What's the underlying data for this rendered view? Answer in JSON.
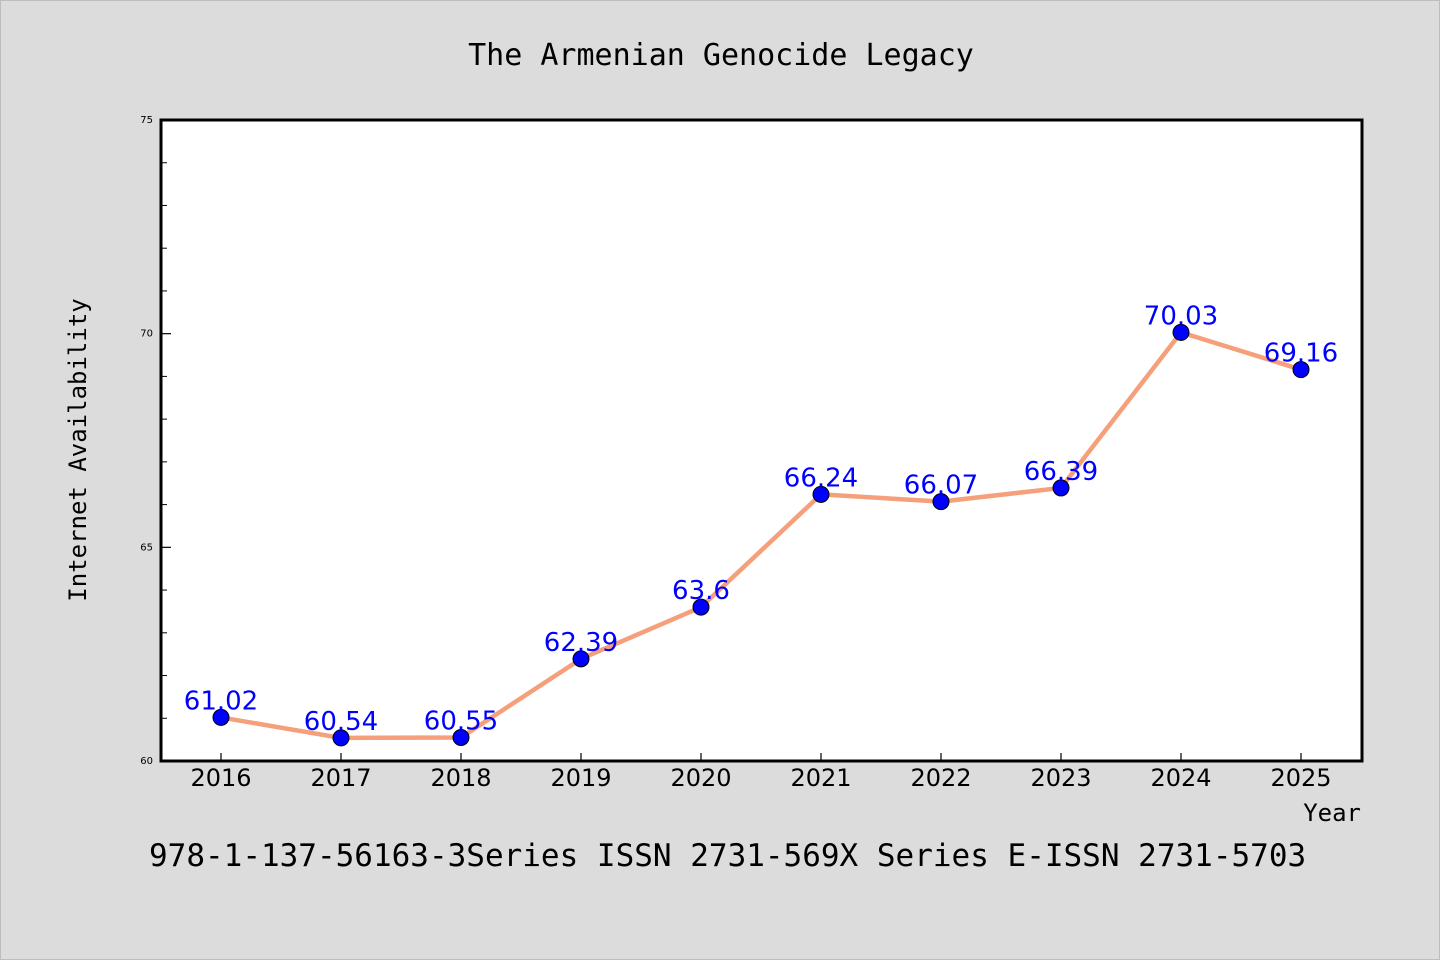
{
  "chart_data": {
    "type": "line",
    "title": "The Armenian Genocide Legacy",
    "xlabel": "Year",
    "ylabel": "Internet Availability",
    "footer": "978-1-137-56163-3Series ISSN 2731-569X Series E-ISSN 2731-5703",
    "categories": [
      "2016",
      "2017",
      "2018",
      "2019",
      "2020",
      "2021",
      "2022",
      "2023",
      "2024",
      "2025"
    ],
    "values": [
      61.02,
      60.54,
      60.55,
      62.39,
      63.6,
      66.24,
      66.07,
      66.39,
      70.03,
      69.16
    ],
    "data_labels": [
      "61.02",
      "60.54",
      "60.55",
      "62.39",
      "63.6",
      "66.24",
      "66.07",
      "66.39",
      "70.03",
      "69.16"
    ],
    "ylim": [
      60,
      75
    ],
    "yticks": [
      "60",
      "65",
      "70",
      "75"
    ],
    "yticks_minor": [
      61,
      62,
      63,
      64,
      66,
      67,
      68,
      69,
      71,
      72,
      73,
      74
    ],
    "grid": false,
    "legend": "none",
    "colors": {
      "line": "#f5a07a",
      "marker": "#0000ff",
      "label": "#0000ff",
      "background": "#dcdcdc",
      "plot_background": "#ffffff",
      "axes": "#000000"
    }
  }
}
